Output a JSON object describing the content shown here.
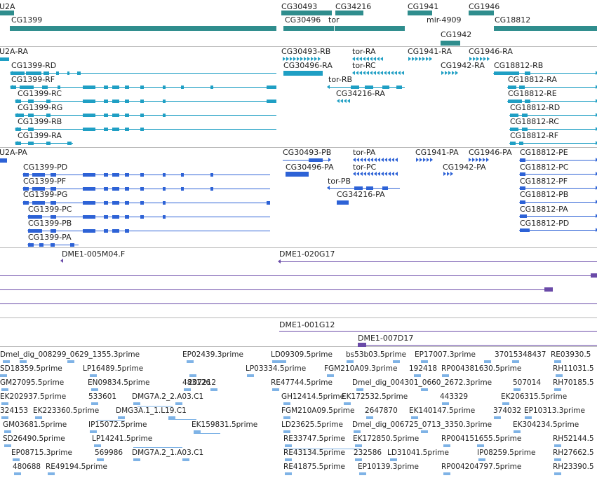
{
  "colors": {
    "gene": "#2f8d8d",
    "mrna": "#1f9fc4",
    "protein": "#2d62d6",
    "clone": "#6a4aa8",
    "est": "#7fb3e6",
    "separator": "#b8b8b8"
  },
  "tracks": {
    "gene": {
      "items": [
        {
          "label": "U2A"
        },
        {
          "label": "CG1399"
        },
        {
          "label": "CG30493"
        },
        {
          "label": "CG34216"
        },
        {
          "label": "CG1941"
        },
        {
          "label": "CG1946"
        },
        {
          "label": "CG30496"
        },
        {
          "label": "tor"
        },
        {
          "label": "mir-4909"
        },
        {
          "label": "CG18812"
        },
        {
          "label": "CG1942"
        }
      ]
    },
    "mrna": {
      "items": [
        {
          "label": "U2A-RA"
        },
        {
          "label": "CG1399-RD"
        },
        {
          "label": "CG1399-RF"
        },
        {
          "label": "CG1399-RC"
        },
        {
          "label": "CG1399-RG"
        },
        {
          "label": "CG1399-RB"
        },
        {
          "label": "CG1399-RA"
        },
        {
          "label": "CG30493-RB"
        },
        {
          "label": "CG30496-RA"
        },
        {
          "label": "tor-RA"
        },
        {
          "label": "tor-RC"
        },
        {
          "label": "tor-RB"
        },
        {
          "label": "CG34216-RA"
        },
        {
          "label": "CG1941-RA"
        },
        {
          "label": "CG1946-RA"
        },
        {
          "label": "CG1942-RA"
        },
        {
          "label": "CG18812-RB"
        },
        {
          "label": "CG18812-RA"
        },
        {
          "label": "CG18812-RE"
        },
        {
          "label": "CG18812-RD"
        },
        {
          "label": "CG18812-RC"
        },
        {
          "label": "CG18812-RF"
        }
      ]
    },
    "protein": {
      "items": [
        {
          "label": "U2A-PA"
        },
        {
          "label": "CG1399-PD"
        },
        {
          "label": "CG1399-PF"
        },
        {
          "label": "CG1399-PG"
        },
        {
          "label": "CG1399-PC"
        },
        {
          "label": "CG1399-PB"
        },
        {
          "label": "CG1399-PA"
        },
        {
          "label": "CG30493-PB"
        },
        {
          "label": "CG30496-PA"
        },
        {
          "label": "tor-PA"
        },
        {
          "label": "tor-PC"
        },
        {
          "label": "tor-PB"
        },
        {
          "label": "CG34216-PA"
        },
        {
          "label": "CG1941-PA"
        },
        {
          "label": "CG1946-PA"
        },
        {
          "label": "CG1942-PA"
        },
        {
          "label": "CG18812-PE"
        },
        {
          "label": "CG18812-PC"
        },
        {
          "label": "CG18812-PF"
        },
        {
          "label": "CG18812-PB"
        },
        {
          "label": "CG18812-PA"
        },
        {
          "label": "CG18812-PD"
        }
      ]
    },
    "clone": {
      "items": [
        {
          "label": "DME1-005M04.F"
        },
        {
          "label": "DME1-020G17"
        },
        {
          "label": "DME1-001G12"
        },
        {
          "label": "DME1-007D17"
        }
      ]
    },
    "est": {
      "items": [
        {
          "label": "Dmel_dig_008299_0629_1355.3prime"
        },
        {
          "label": "EP02439.3prime"
        },
        {
          "label": "LD09309.5prime"
        },
        {
          "label": "bs53b03.5prime"
        },
        {
          "label": "EP17007.3prime"
        },
        {
          "label": "37015348437"
        },
        {
          "label": "RE03930.5"
        },
        {
          "label": "SD18359.5prime"
        },
        {
          "label": "LP16489.5prime"
        },
        {
          "label": "LP03334.5prime"
        },
        {
          "label": "FGM210A09.3prime"
        },
        {
          "label": "192418"
        },
        {
          "label": "RP004381630.5prime"
        },
        {
          "label": "RH11031.5"
        },
        {
          "label": "483126"
        },
        {
          "label": "207212"
        },
        {
          "label": "GM27095.5prime"
        },
        {
          "label": "EN09834.5prime"
        },
        {
          "label": "RE47744.5prime"
        },
        {
          "label": "Dmel_dig_004301_0660_2672.3prime"
        },
        {
          "label": "507014"
        },
        {
          "label": "RH70185.5"
        },
        {
          "label": "EK202937.5prime"
        },
        {
          "label": "533601"
        },
        {
          "label": "DMG7A.2_2.A03.C1"
        },
        {
          "label": "GH12414.5prime"
        },
        {
          "label": "EK172532.5prime"
        },
        {
          "label": "443329"
        },
        {
          "label": "EK206315.5prime"
        },
        {
          "label": "324153"
        },
        {
          "label": "EK223360.5prime"
        },
        {
          "label": "DMG3A.1_1.L19.C1"
        },
        {
          "label": "FGM210A09.5prime"
        },
        {
          "label": "2647870"
        },
        {
          "label": "EK140147.5prime"
        },
        {
          "label": "374032"
        },
        {
          "label": "EP10313.3prime"
        },
        {
          "label": "GM03681.5prime"
        },
        {
          "label": "IP15072.5prime"
        },
        {
          "label": "EK159831.5prime"
        },
        {
          "label": "LD23625.5prime"
        },
        {
          "label": "Dmel_dig_006725_0713_3350.3prime"
        },
        {
          "label": "EK304234.5prime"
        },
        {
          "label": "SD26490.5prime"
        },
        {
          "label": "LP14241.5prime"
        },
        {
          "label": "RE33747.5prime"
        },
        {
          "label": "EK172850.5prime"
        },
        {
          "label": "RP00415"
        },
        {
          "label": "1655.5prime"
        },
        {
          "label": "RH52144.5"
        },
        {
          "label": "EP08715.3prime"
        },
        {
          "label": "569986"
        },
        {
          "label": "DMG7A.2_1.A03.C1"
        },
        {
          "label": "RE43134.5prime"
        },
        {
          "label": "232586"
        },
        {
          "label": "LD31041.5prime"
        },
        {
          "label": "IP08259.5prime"
        },
        {
          "label": "RH27662.5"
        },
        {
          "label": "480688"
        },
        {
          "label": "RE49194.5prime"
        },
        {
          "label": "RE41875.5prime"
        },
        {
          "label": "EP10139.3prime"
        },
        {
          "label": "RP004204797.5prime"
        },
        {
          "label": "RH23390.5"
        }
      ]
    }
  }
}
